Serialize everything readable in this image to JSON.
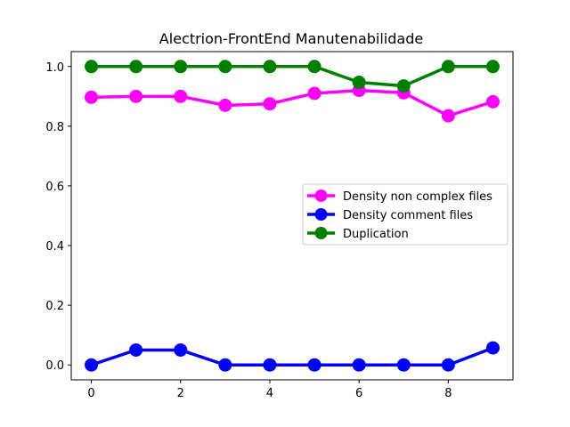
{
  "chart_data": {
    "type": "line",
    "title": "Alectrion-FrontEnd Manutenabilidade",
    "xlabel": "",
    "ylabel": "",
    "x": [
      0,
      1,
      2,
      3,
      4,
      5,
      6,
      7,
      8,
      9
    ],
    "xlim": [
      -0.45,
      9.45
    ],
    "ylim": [
      -0.05,
      1.05
    ],
    "xticks": [
      0,
      2,
      4,
      6,
      8
    ],
    "yticks": [
      0.0,
      0.2,
      0.4,
      0.6,
      0.8,
      1.0
    ],
    "xtick_labels": [
      "0",
      "2",
      "4",
      "6",
      "8"
    ],
    "ytick_labels": [
      "0.0",
      "0.2",
      "0.4",
      "0.6",
      "0.8",
      "1.0"
    ],
    "grid": false,
    "legend_position": "center-right",
    "series": [
      {
        "name": "Density non complex files",
        "color": "#ff00ff",
        "values": [
          0.897,
          0.9,
          0.9,
          0.87,
          0.875,
          0.91,
          0.92,
          0.912,
          0.835,
          0.882
        ]
      },
      {
        "name": "Density comment files",
        "color": "#0000ff",
        "values": [
          0.0,
          0.05,
          0.05,
          0.0,
          0.0,
          0.0,
          0.0,
          0.0,
          0.0,
          0.057
        ]
      },
      {
        "name": "Duplication",
        "color": "#008000",
        "values": [
          1.0,
          1.0,
          1.0,
          1.0,
          1.0,
          1.0,
          0.947,
          0.935,
          1.0,
          1.0
        ]
      }
    ]
  }
}
